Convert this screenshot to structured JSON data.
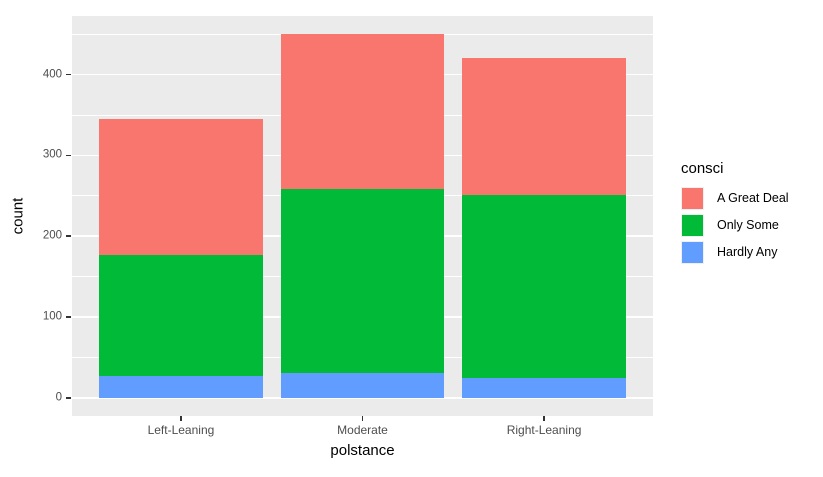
{
  "chart_data": {
    "type": "bar",
    "stacked": true,
    "title": "",
    "xlabel": "polstance",
    "ylabel": "count",
    "legend_title": "consci",
    "legend_position": "right",
    "categories": [
      "Left-Leaning",
      "Moderate",
      "Right-Leaning"
    ],
    "series": [
      {
        "name": "A Great Deal",
        "color": "#F8766D",
        "values": [
          168,
          191,
          169
        ]
      },
      {
        "name": "Only Some",
        "color": "#00BA38",
        "values": [
          150,
          228,
          226
        ]
      },
      {
        "name": "Hardly Any",
        "color": "#619CFF",
        "values": [
          27,
          31,
          25
        ]
      }
    ],
    "totals": [
      345,
      450,
      420
    ],
    "y_ticks": [
      0,
      100,
      200,
      300,
      400
    ],
    "y_minor_ticks": [
      50,
      150,
      250,
      350,
      450
    ],
    "ylim": [
      -22.5,
      472.5
    ],
    "grid": true,
    "bar_width_fraction": 0.9,
    "panel_background": "#EBEBEB",
    "gridline_color": "#FFFFFF",
    "tick_label_color": "#4D4D4D"
  }
}
